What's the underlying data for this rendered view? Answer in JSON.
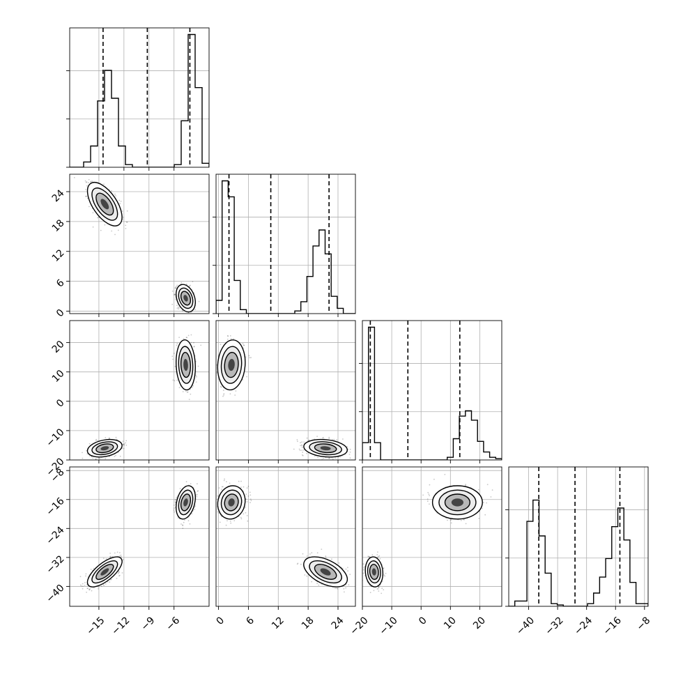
{
  "chart_data": {
    "type": "corner",
    "grid": true,
    "parameters": [
      {
        "range": [
          -18.5,
          -1.8
        ],
        "ticks": [
          -15,
          -12,
          -9,
          -6
        ],
        "tick_labels": [
          "−15",
          "−12",
          "−9",
          "−6"
        ],
        "quantiles": [
          -14.5,
          -9.2,
          -4.1
        ],
        "hist_bins": [
          0,
          0,
          0.04,
          0.16,
          0.5,
          0.73,
          0.52,
          0.16,
          0.02,
          0,
          0,
          0,
          0,
          0,
          0,
          0.02,
          0.35,
          1.0,
          0.6,
          0.03
        ],
        "hist_max": 1.0
      },
      {
        "range": [
          -0.5,
          27.5
        ],
        "ticks": [
          0,
          6,
          12,
          18,
          24
        ],
        "tick_labels": [
          "0",
          "6",
          "12",
          "18",
          "24"
        ],
        "quantiles": [
          2.1,
          10.5,
          22.2
        ],
        "hist_bins": [
          0.1,
          1.0,
          0.88,
          0.25,
          0.03,
          0,
          0,
          0,
          0,
          0,
          0,
          0,
          0,
          0.02,
          0.09,
          0.28,
          0.51,
          0.63,
          0.45,
          0.13,
          0.04,
          0,
          0
        ],
        "hist_max": 1.0
      },
      {
        "range": [
          -20.0,
          27.5
        ],
        "ticks": [
          -20,
          -10,
          0,
          10,
          20
        ],
        "tick_labels": [
          "−20",
          "−10",
          "0",
          "10",
          "20"
        ],
        "quantiles": [
          -17.3,
          -4.5,
          13.2
        ],
        "hist_bins": [
          0.13,
          1.0,
          0.13,
          0,
          0,
          0,
          0,
          0,
          0,
          0,
          0,
          0,
          0,
          0,
          0.02,
          0.16,
          0.33,
          0.37,
          0.3,
          0.14,
          0.06,
          0.02,
          0.01
        ],
        "hist_max": 1.0
      },
      {
        "range": [
          -45.5,
          -7.0
        ],
        "ticks": [
          -40,
          -32,
          -24,
          -16,
          -8
        ],
        "tick_labels": [
          "−40",
          "−32",
          "−24",
          "−16",
          "−8"
        ],
        "quantiles": [
          -37.2,
          -27.2,
          -14.8
        ],
        "hist_bins": [
          0,
          0.04,
          0.04,
          0.64,
          0.8,
          0.53,
          0.25,
          0.02,
          0.01,
          0,
          0,
          0,
          0,
          0.02,
          0.1,
          0.22,
          0.36,
          0.6,
          0.74,
          0.5,
          0.18,
          0.02,
          0.02
        ],
        "hist_max": 1.0
      }
    ],
    "clusters": [
      {
        "mean": [
          -14.3,
          21.5,
          -16.0,
          -36.0
        ],
        "sd": [
          0.9,
          1.9,
          1.3,
          1.8
        ],
        "weight": 0.5
      },
      {
        "mean": [
          -4.6,
          2.6,
          12.4,
          -16.8
        ],
        "sd": [
          0.5,
          1.2,
          3.7,
          2.0
        ],
        "weight": 0.5
      }
    ],
    "correlations": {
      "1,0": [
        -0.6,
        -0.3
      ],
      "3,0": [
        0.7,
        0.3
      ],
      "3,1": [
        -0.5,
        0.1
      ],
      "3,2": [
        -0.1,
        0.0
      ],
      "2,0": [
        0.3,
        -0.1
      ],
      "2,1": [
        -0.2,
        0.1
      ]
    }
  }
}
